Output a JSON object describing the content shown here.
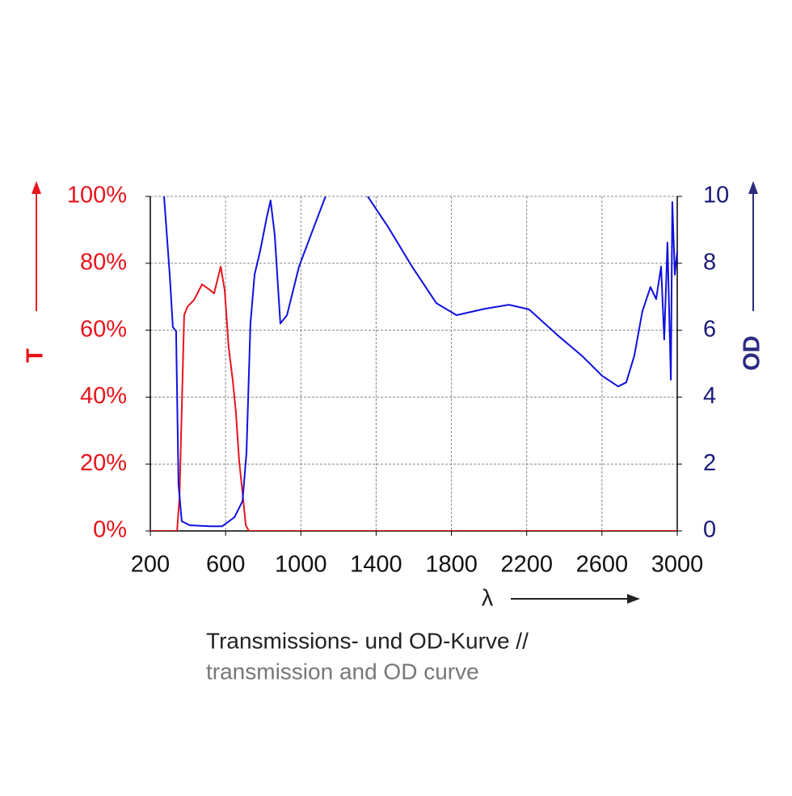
{
  "chart_data": {
    "type": "line",
    "xlabel": "λ",
    "ylabel": "T",
    "y2label": "OD",
    "caption": "Transmissions- und OD-Kurve //",
    "caption_translation": "transmission and OD curve",
    "xlim": [
      200,
      3000
    ],
    "xticks": [
      200,
      600,
      1000,
      1400,
      1800,
      2200,
      2600,
      3000
    ],
    "ylim": [
      0,
      100
    ],
    "yticks": [
      {
        "value": 0,
        "label": "0%"
      },
      {
        "value": 20,
        "label": "20%"
      },
      {
        "value": 40,
        "label": "40%"
      },
      {
        "value": 60,
        "label": "60%"
      },
      {
        "value": 80,
        "label": "80%"
      },
      {
        "value": 100,
        "label": "100%"
      }
    ],
    "y2lim": [
      0,
      10
    ],
    "y2ticks": [
      0,
      2,
      4,
      6,
      8,
      10
    ],
    "grid": true,
    "series": [
      {
        "name": "T",
        "color": "#e8141c",
        "x": [
          200,
          342,
          355,
          380,
          397,
          432,
          475,
          518,
          539,
          574,
          595,
          616,
          638,
          655,
          672,
          690,
          707,
          724,
          3000
        ],
        "values": [
          0,
          0,
          10,
          64.5,
          67,
          69,
          73.7,
          72,
          71,
          79,
          72,
          55,
          45,
          35.5,
          21,
          11.4,
          1.7,
          0,
          0
        ]
      },
      {
        "name": "OD",
        "color": "#1010e0",
        "axis": "y2",
        "x": [
          273,
          303,
          320,
          337,
          350,
          367,
          410,
          518,
          582,
          647,
          690,
          711,
          732,
          754,
          784,
          818,
          839,
          861,
          891,
          926,
          990,
          1054,
          1131,
          1250,
          1355,
          1462,
          1591,
          1720,
          1827,
          1977,
          2106,
          2213,
          2364,
          2493,
          2600,
          2686,
          2729,
          2772,
          2815,
          2858,
          2888,
          2914,
          2931,
          2948,
          2966,
          2974,
          2987,
          3000
        ],
        "values": [
          10,
          7.66,
          6.09,
          5.97,
          1.38,
          0.29,
          0.17,
          0.14,
          0.14,
          0.41,
          0.89,
          2.34,
          6.2,
          7.66,
          8.38,
          9.35,
          9.88,
          8.86,
          6.2,
          6.45,
          7.9,
          8.86,
          10,
          null,
          10,
          9.1,
          7.9,
          6.81,
          6.45,
          6.64,
          6.76,
          6.62,
          5.85,
          5.24,
          4.64,
          4.32,
          4.44,
          5.24,
          6.57,
          7.29,
          6.93,
          7.9,
          5.72,
          8.62,
          4.52,
          9.83,
          7.66,
          8.38
        ]
      }
    ]
  }
}
